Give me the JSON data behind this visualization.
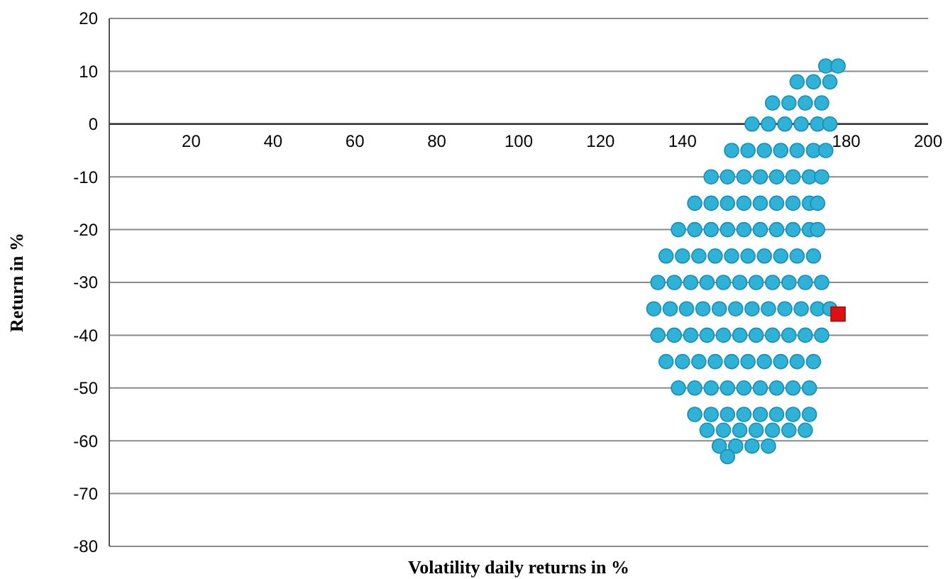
{
  "chart_data": {
    "type": "scatter",
    "xlabel": "Volatility daily returns in %",
    "ylabel": "Return in %",
    "xlim": [
      0,
      200
    ],
    "xticks": [
      20,
      40,
      60,
      80,
      100,
      120,
      140,
      180,
      200
    ],
    "ylim": [
      -80,
      20
    ],
    "yticks": [
      -80,
      -70,
      -60,
      -50,
      -40,
      -30,
      -20,
      -10,
      0,
      10,
      20
    ],
    "grid": "y",
    "series": [
      {
        "color": "#2fb2d8",
        "marker": "circle",
        "x": [
          175,
          178,
          168,
          172,
          176,
          162,
          166,
          170,
          174,
          157,
          161,
          165,
          169,
          173,
          176,
          152,
          156,
          160,
          164,
          168,
          172,
          175,
          147,
          151,
          155,
          159,
          163,
          167,
          171,
          174,
          143,
          147,
          151,
          155,
          159,
          163,
          167,
          171,
          173,
          139,
          143,
          147,
          151,
          155,
          159,
          163,
          167,
          171,
          173,
          136,
          140,
          144,
          148,
          152,
          156,
          160,
          164,
          168,
          172,
          134,
          138,
          142,
          146,
          150,
          154,
          158,
          162,
          166,
          170,
          174,
          133,
          137,
          141,
          145,
          149,
          153,
          157,
          161,
          165,
          169,
          173,
          176,
          134,
          138,
          142,
          146,
          150,
          154,
          158,
          162,
          166,
          170,
          174,
          136,
          140,
          144,
          148,
          152,
          156,
          160,
          164,
          168,
          172,
          139,
          143,
          147,
          151,
          155,
          159,
          163,
          167,
          171,
          143,
          147,
          151,
          155,
          159,
          163,
          167,
          171,
          146,
          150,
          154,
          158,
          162,
          166,
          170,
          149,
          153,
          157,
          161,
          151
        ],
        "values": [
          11,
          11,
          8,
          8,
          8,
          4,
          4,
          4,
          4,
          0,
          0,
          0,
          0,
          0,
          0,
          -5,
          -5,
          -5,
          -5,
          -5,
          -5,
          -5,
          -10,
          -10,
          -10,
          -10,
          -10,
          -10,
          -10,
          -10,
          -15,
          -15,
          -15,
          -15,
          -15,
          -15,
          -15,
          -15,
          -15,
          -20,
          -20,
          -20,
          -20,
          -20,
          -20,
          -20,
          -20,
          -20,
          -20,
          -25,
          -25,
          -25,
          -25,
          -25,
          -25,
          -25,
          -25,
          -25,
          -25,
          -30,
          -30,
          -30,
          -30,
          -30,
          -30,
          -30,
          -30,
          -30,
          -30,
          -30,
          -35,
          -35,
          -35,
          -35,
          -35,
          -35,
          -35,
          -35,
          -35,
          -35,
          -35,
          -35,
          -40,
          -40,
          -40,
          -40,
          -40,
          -40,
          -40,
          -40,
          -40,
          -40,
          -40,
          -45,
          -45,
          -45,
          -45,
          -45,
          -45,
          -45,
          -45,
          -45,
          -45,
          -50,
          -50,
          -50,
          -50,
          -50,
          -50,
          -50,
          -50,
          -50,
          -55,
          -55,
          -55,
          -55,
          -55,
          -55,
          -55,
          -55,
          -58,
          -58,
          -58,
          -58,
          -58,
          -58,
          -58,
          -61,
          -61,
          -61,
          -61,
          -63
        ]
      },
      {
        "color": "#dd1111",
        "marker": "square",
        "x": [
          178
        ],
        "values": [
          -36
        ]
      }
    ]
  }
}
